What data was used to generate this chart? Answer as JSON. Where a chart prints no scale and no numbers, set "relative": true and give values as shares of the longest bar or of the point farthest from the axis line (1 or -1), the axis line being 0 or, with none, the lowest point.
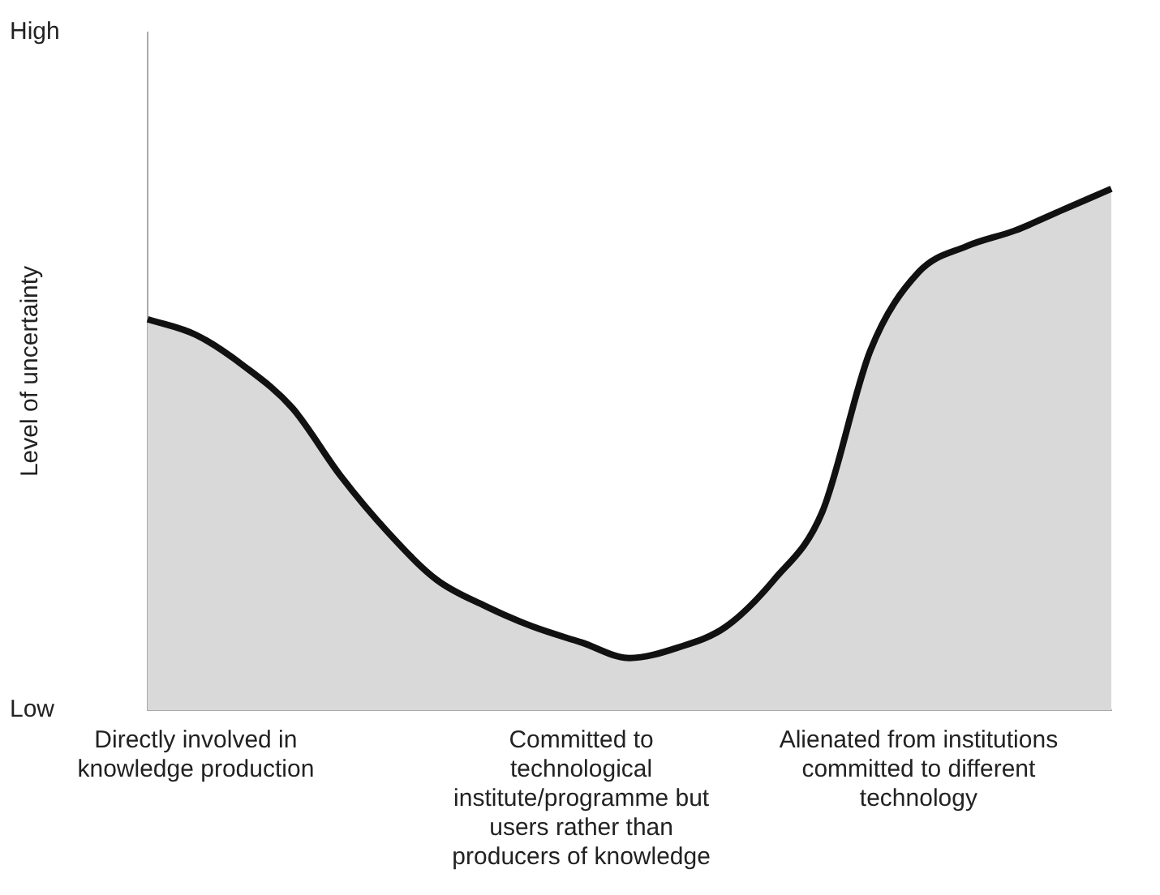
{
  "chart_data": {
    "type": "area",
    "relative": true,
    "ylabel": "Level of uncertainty",
    "annotations": [
      "High",
      "Low"
    ],
    "categories": [
      null,
      "Directly involved in knowledge production",
      null,
      null,
      null,
      null,
      null,
      null,
      null,
      "Committed to technological institute/programme but users rather than producers of knowledge",
      null,
      null,
      null,
      null,
      null,
      null,
      "Alienated from institutions committed to different technology",
      null,
      null,
      null,
      null
    ],
    "series": [
      {
        "color": "#d9d9d9",
        "values": [
          0.75,
          0.72,
          0.66,
          0.58,
          0.45,
          0.34,
          0.25,
          0.2,
          0.16,
          0.13,
          0.1,
          0.12,
          0.16,
          0.25,
          0.38,
          0.69,
          0.84,
          0.89,
          0.92,
          0.96,
          1.0
        ]
      }
    ],
    "grid": false,
    "legend": false,
    "marker": "none",
    "line_style": "solid"
  }
}
